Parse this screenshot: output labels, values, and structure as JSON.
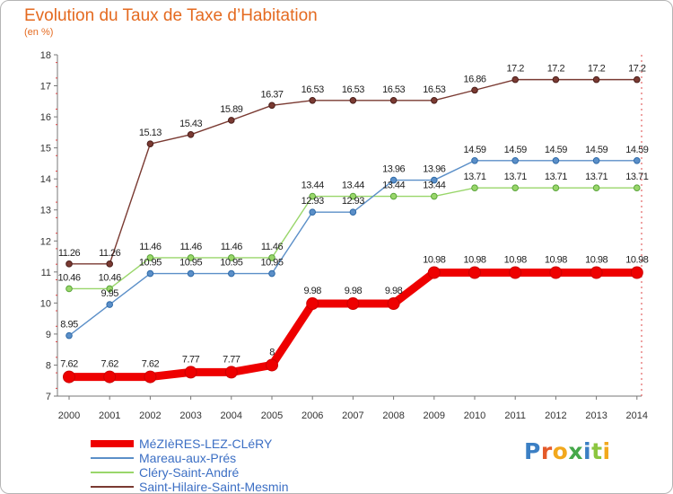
{
  "header": {
    "title": "Evolution du Taux de Taxe d’Habitation",
    "subtitle": "(en %)"
  },
  "logo": {
    "text": "Proxiti",
    "colors": [
      "#3b7fc4",
      "#e45a2a",
      "#f2a81d",
      "#45a84a",
      "#3b7fc4",
      "#8cc63f",
      "#f2a81d"
    ]
  },
  "chart_data": {
    "type": "line",
    "title": "Evolution du Taux de Taxe d’Habitation",
    "subtitle": "(en %)",
    "x": [
      "2000",
      "2001",
      "2002",
      "2003",
      "2004",
      "2005",
      "2006",
      "2007",
      "2008",
      "2009",
      "2010",
      "2011",
      "2012",
      "2013",
      "2014"
    ],
    "yticks": [
      "7",
      "8",
      "9",
      "10",
      "11",
      "12",
      "13",
      "14",
      "15",
      "16",
      "17",
      "18"
    ],
    "ylim": [
      7,
      18
    ],
    "grid": false,
    "legend_position": "bottom-left",
    "series": [
      {
        "name": "MéZIèRES-LEZ-CLéRY",
        "color": "#ee0000",
        "values": [
          7.62,
          7.62,
          7.62,
          7.77,
          7.77,
          8,
          9.98,
          9.98,
          9.98,
          10.98,
          10.98,
          10.98,
          10.98,
          10.98,
          10.98
        ],
        "labels": [
          "7.62",
          "7.62",
          "7.62",
          "7.77",
          "7.77",
          "8",
          "9.98",
          "9.98",
          "9.98",
          "10.98",
          "10.98",
          "10.98",
          "10.98",
          "10.98",
          "10.98"
        ]
      },
      {
        "name": "Mareau-aux-Prés",
        "color": "#5b8fc8",
        "values": [
          8.95,
          9.95,
          10.95,
          10.95,
          10.95,
          10.95,
          12.93,
          12.93,
          13.96,
          13.96,
          14.59,
          14.59,
          14.59,
          14.59,
          14.59
        ],
        "labels": [
          "8.95",
          "9.95",
          "10.95",
          "10.95",
          "10.95",
          "10.95",
          "12.93",
          "12.93",
          "13.96",
          "13.96",
          "14.59",
          "14.59",
          "14.59",
          "14.59",
          "14.59"
        ]
      },
      {
        "name": "Cléry-Saint-André",
        "color": "#99d66a",
        "values": [
          10.46,
          10.46,
          11.46,
          11.46,
          11.46,
          11.46,
          13.44,
          13.44,
          13.44,
          13.44,
          13.71,
          13.71,
          13.71,
          13.71,
          13.71
        ],
        "labels": [
          "10.46",
          "10.46",
          "11.46",
          "11.46",
          "11.46",
          "11.46",
          "13.44",
          "13.44",
          "13.44",
          "13.44",
          "13.71",
          "13.71",
          "13.71",
          "13.71",
          "13.71"
        ]
      },
      {
        "name": "Saint-Hilaire-Saint-Mesmin",
        "color": "#7a3a32",
        "values": [
          11.26,
          11.26,
          15.13,
          15.43,
          15.89,
          16.37,
          16.53,
          16.53,
          16.53,
          16.53,
          16.86,
          17.2,
          17.2,
          17.2,
          17.2
        ],
        "labels": [
          "11.26",
          "11.26",
          "15.13",
          "15.43",
          "15.89",
          "16.37",
          "16.53",
          "16.53",
          "16.53",
          "16.53",
          "16.86",
          "17.2",
          "17.2",
          "17.2",
          "17.2"
        ]
      }
    ]
  }
}
